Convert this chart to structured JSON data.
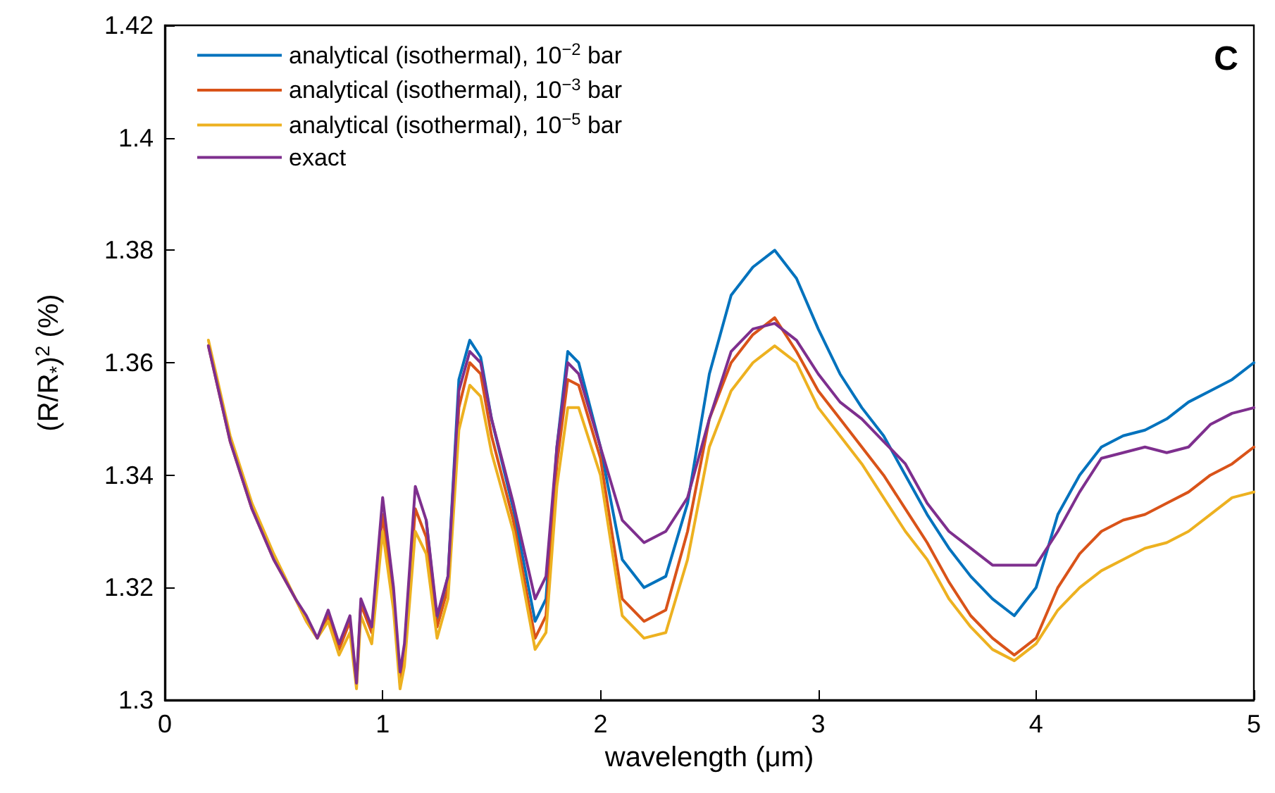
{
  "chart_data": {
    "type": "line",
    "xlabel": "wavelength (μm)",
    "ylabel": "(R/R$_{*}$)$^{2}$ (%)",
    "annotations": [
      "C"
    ],
    "x": [
      0.2,
      0.3,
      0.4,
      0.5,
      0.6,
      0.65,
      0.7,
      0.75,
      0.8,
      0.85,
      0.88,
      0.9,
      0.95,
      1.0,
      1.05,
      1.08,
      1.1,
      1.15,
      1.2,
      1.25,
      1.3,
      1.35,
      1.4,
      1.45,
      1.5,
      1.6,
      1.7,
      1.75,
      1.8,
      1.85,
      1.9,
      2.0,
      2.1,
      2.2,
      2.3,
      2.4,
      2.5,
      2.6,
      2.7,
      2.8,
      2.9,
      3.0,
      3.1,
      3.2,
      3.3,
      3.4,
      3.5,
      3.6,
      3.7,
      3.8,
      3.9,
      4.0,
      4.1,
      4.2,
      4.3,
      4.4,
      4.5,
      4.6,
      4.7,
      4.8,
      4.9,
      5.0
    ],
    "series": [
      {
        "name": "analytical (isothermal), 10$^{−2}$ bar",
        "color": "#0072bd",
        "values": [
          null,
          null,
          null,
          null,
          null,
          null,
          null,
          null,
          null,
          null,
          null,
          null,
          null,
          null,
          null,
          null,
          null,
          null,
          1.332,
          1.314,
          1.322,
          1.357,
          1.364,
          1.361,
          1.35,
          1.334,
          1.314,
          1.318,
          1.345,
          1.362,
          1.36,
          1.345,
          1.325,
          1.32,
          1.322,
          1.335,
          1.358,
          1.372,
          1.377,
          1.38,
          1.375,
          1.366,
          1.358,
          1.352,
          1.347,
          1.34,
          1.333,
          1.327,
          1.322,
          1.318,
          1.315,
          1.32,
          1.333,
          1.34,
          1.345,
          1.347,
          1.348,
          1.35,
          1.353,
          1.355,
          1.357,
          1.36
        ]
      },
      {
        "name": "analytical (isothermal), 10$^{−3}$ bar",
        "color": "#d95319",
        "values": [
          1.363,
          1.346,
          1.334,
          1.325,
          1.318,
          1.314,
          1.311,
          1.315,
          1.309,
          1.314,
          1.303,
          1.317,
          1.312,
          1.333,
          1.318,
          1.303,
          1.308,
          1.334,
          1.329,
          1.313,
          1.32,
          1.352,
          1.36,
          1.358,
          1.347,
          1.332,
          1.311,
          1.315,
          1.342,
          1.357,
          1.356,
          1.343,
          1.318,
          1.314,
          1.316,
          1.33,
          1.35,
          1.36,
          1.365,
          1.368,
          1.362,
          1.355,
          1.35,
          1.345,
          1.34,
          1.334,
          1.328,
          1.321,
          1.315,
          1.311,
          1.308,
          1.311,
          1.32,
          1.326,
          1.33,
          1.332,
          1.333,
          1.335,
          1.337,
          1.34,
          1.342,
          1.345
        ]
      },
      {
        "name": "analytical (isothermal), 10$^{−5}$ bar",
        "color": "#edb120",
        "values": [
          1.364,
          1.347,
          1.335,
          1.326,
          1.318,
          1.314,
          1.311,
          1.314,
          1.308,
          1.312,
          1.302,
          1.315,
          1.31,
          1.33,
          1.316,
          1.302,
          1.306,
          1.33,
          1.326,
          1.311,
          1.318,
          1.348,
          1.356,
          1.354,
          1.344,
          1.33,
          1.309,
          1.312,
          1.338,
          1.352,
          1.352,
          1.34,
          1.315,
          1.311,
          1.312,
          1.325,
          1.345,
          1.355,
          1.36,
          1.363,
          1.36,
          1.352,
          1.347,
          1.342,
          1.336,
          1.33,
          1.325,
          1.318,
          1.313,
          1.309,
          1.307,
          1.31,
          1.316,
          1.32,
          1.323,
          1.325,
          1.327,
          1.328,
          1.33,
          1.333,
          1.336,
          1.337
        ]
      },
      {
        "name": "exact",
        "color": "#7e2f8e",
        "values": [
          1.363,
          1.346,
          1.334,
          1.325,
          1.318,
          1.315,
          1.311,
          1.316,
          1.31,
          1.315,
          1.303,
          1.318,
          1.313,
          1.336,
          1.32,
          1.305,
          1.31,
          1.338,
          1.332,
          1.315,
          1.322,
          1.355,
          1.362,
          1.36,
          1.35,
          1.335,
          1.318,
          1.322,
          1.345,
          1.36,
          1.358,
          1.345,
          1.332,
          1.328,
          1.33,
          1.336,
          1.35,
          1.362,
          1.366,
          1.367,
          1.364,
          1.358,
          1.353,
          1.35,
          1.346,
          1.342,
          1.335,
          1.33,
          1.327,
          1.324,
          1.324,
          1.324,
          1.33,
          1.337,
          1.343,
          1.344,
          1.345,
          1.344,
          1.345,
          1.349,
          1.351,
          1.352
        ]
      }
    ],
    "xlim": [
      0,
      5
    ],
    "xticks": [
      0,
      1,
      2,
      3,
      4,
      5
    ],
    "ylim": [
      1.3,
      1.42
    ],
    "yticks": [
      1.3,
      1.32,
      1.34,
      1.36,
      1.38,
      1.4,
      1.42
    ],
    "grid": false,
    "legend": "top left",
    "marker": "none",
    "line_style": "solid"
  }
}
